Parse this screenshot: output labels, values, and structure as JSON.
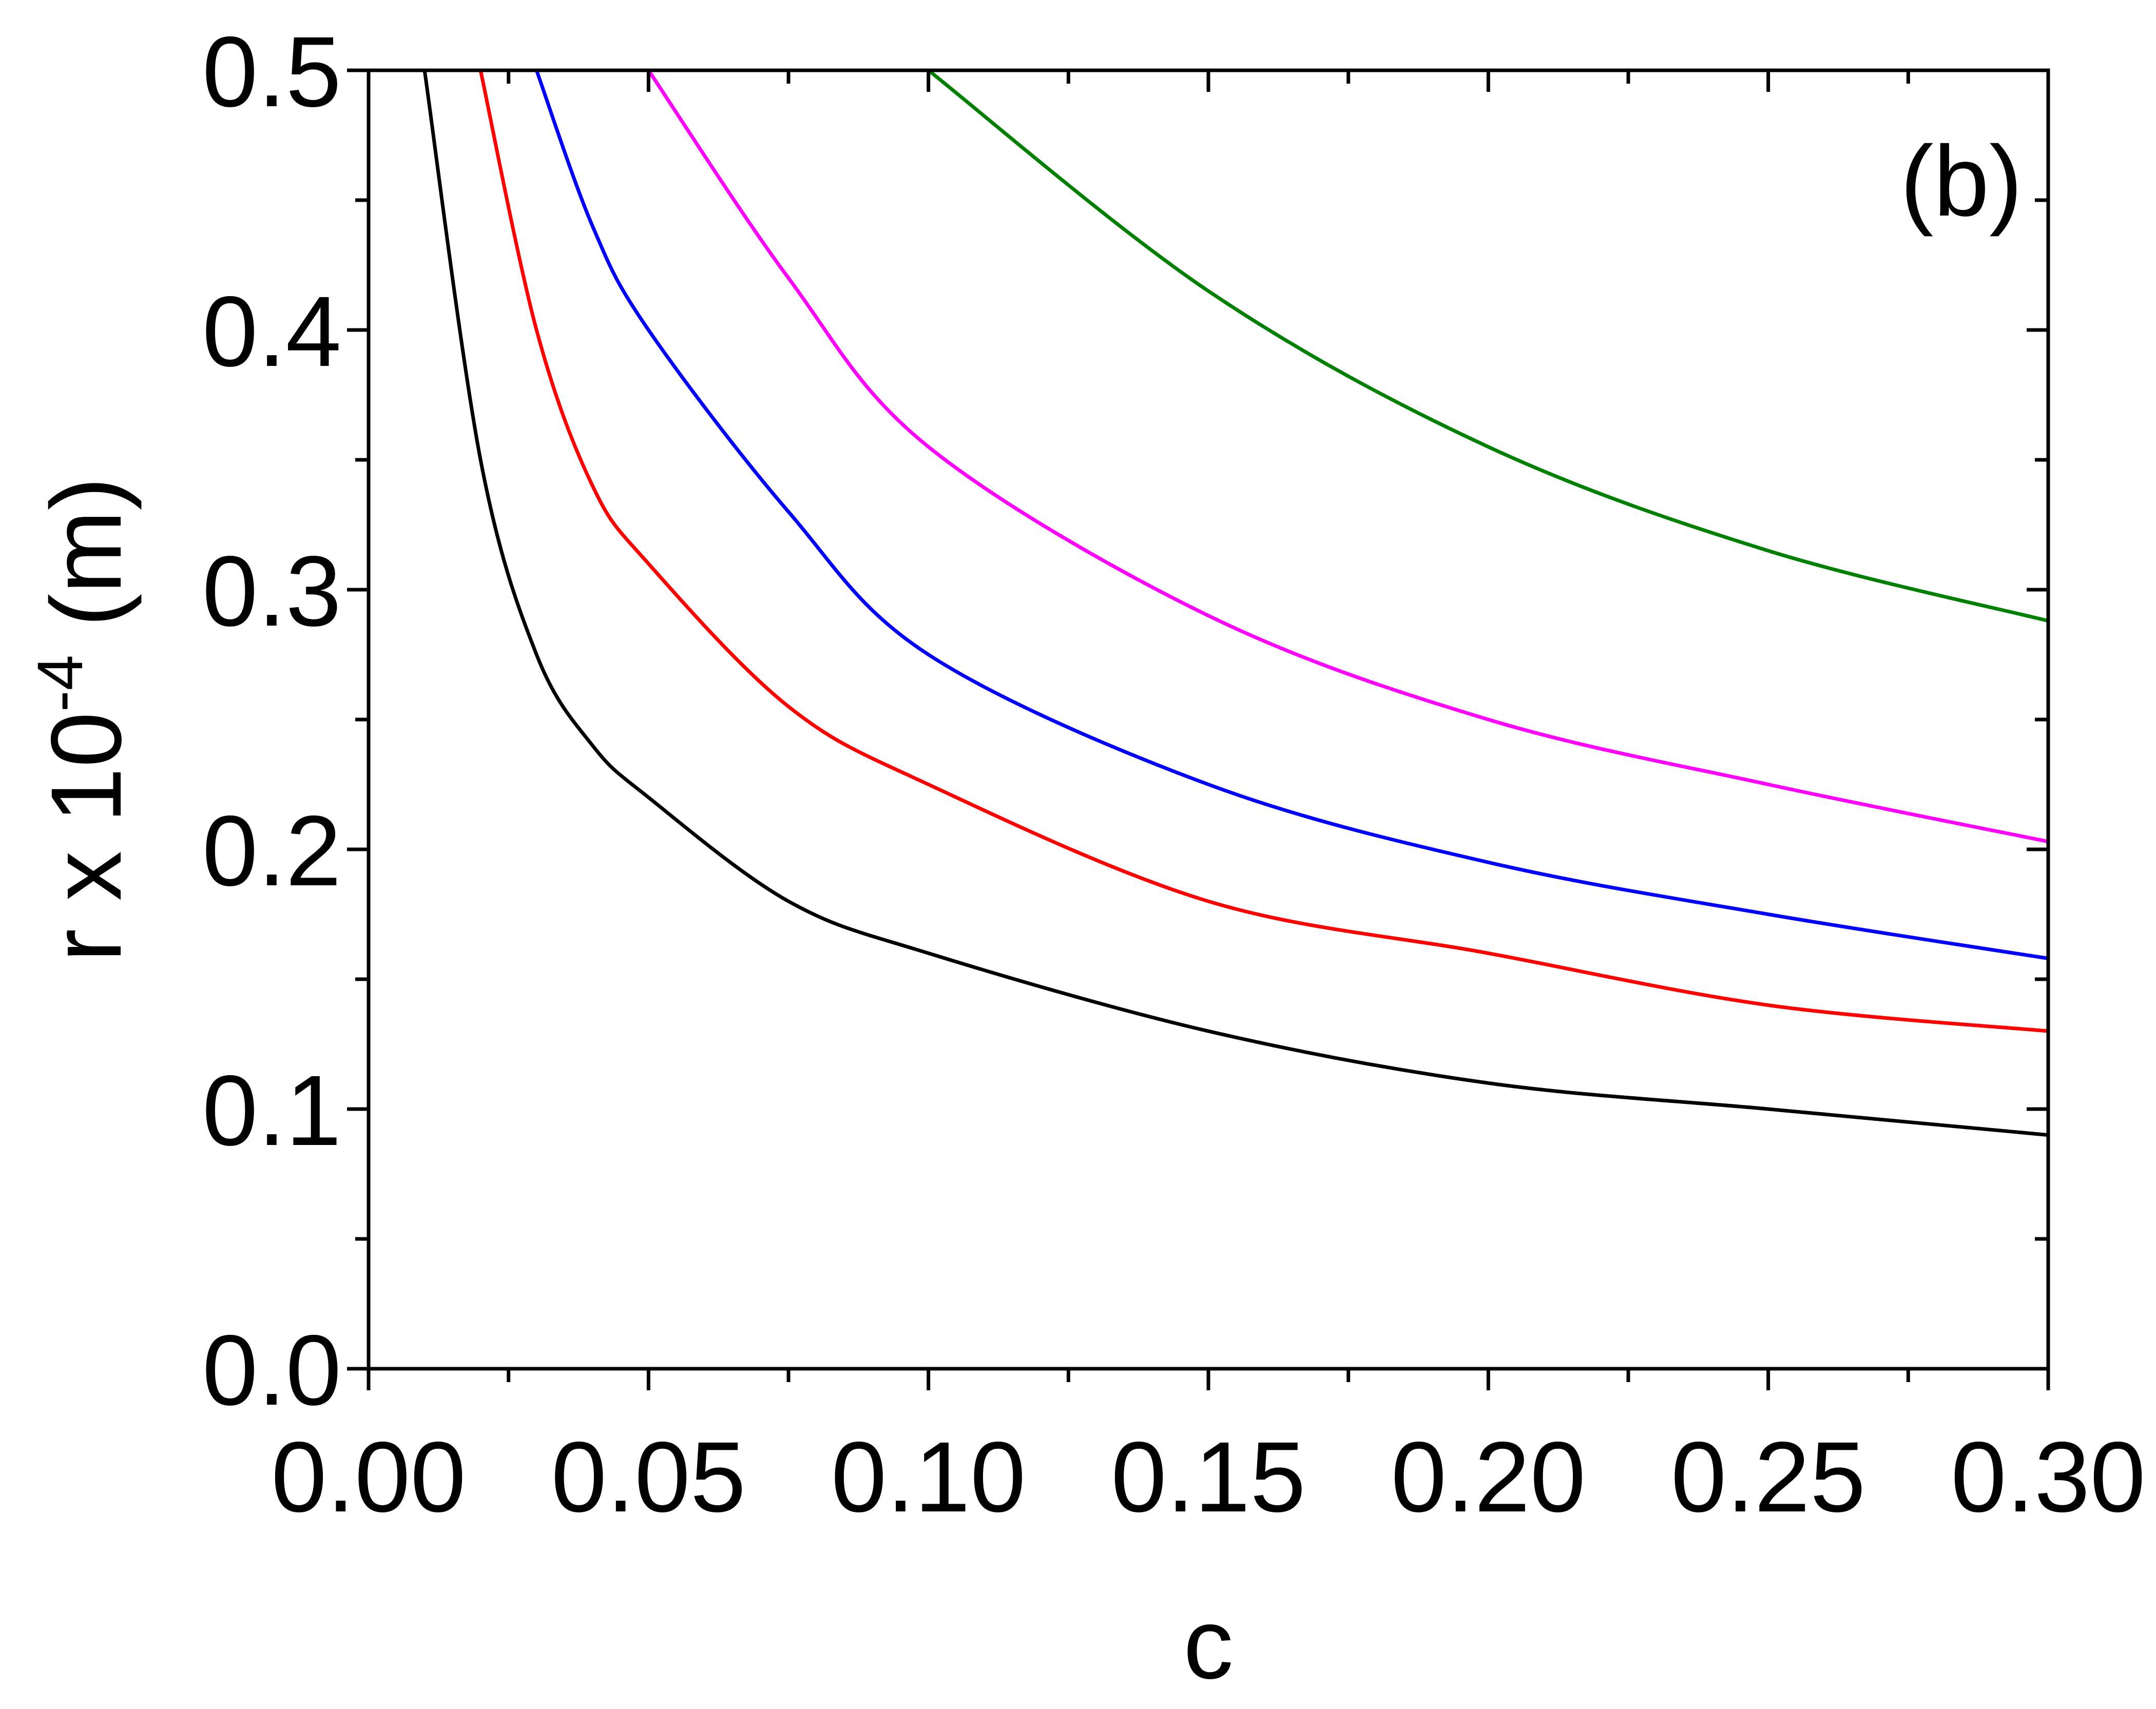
{
  "chart_data": {
    "type": "line",
    "panel_label": "(b)",
    "xlabel": "c",
    "ylabel_main": "r x 10",
    "ylabel_exp": "-4",
    "ylabel_unit": " (m)",
    "xlim": [
      0.0,
      0.3
    ],
    "ylim": [
      0.0,
      0.5
    ],
    "x_ticks": [
      0.0,
      0.05,
      0.1,
      0.15,
      0.2,
      0.25,
      0.3
    ],
    "x_tick_labels": [
      "0.00",
      "0.05",
      "0.10",
      "0.15",
      "0.20",
      "0.25",
      "0.30"
    ],
    "y_ticks": [
      0.0,
      0.1,
      0.2,
      0.3,
      0.4,
      0.5
    ],
    "y_tick_labels": [
      "0.0",
      "0.1",
      "0.2",
      "0.3",
      "0.4",
      "0.5"
    ],
    "grid": false,
    "legend": "none",
    "series": [
      {
        "color": "#000000",
        "points": [
          [
            0.01,
            0.5
          ],
          [
            0.02,
            0.35
          ],
          [
            0.03,
            0.275
          ],
          [
            0.04,
            0.24
          ],
          [
            0.05,
            0.22
          ],
          [
            0.075,
            0.18
          ],
          [
            0.1,
            0.16
          ],
          [
            0.15,
            0.13
          ],
          [
            0.2,
            0.11
          ],
          [
            0.25,
            0.1
          ],
          [
            0.3,
            0.09
          ]
        ]
      },
      {
        "color": "#ff0000",
        "points": [
          [
            0.02,
            0.5
          ],
          [
            0.03,
            0.4
          ],
          [
            0.04,
            0.34
          ],
          [
            0.05,
            0.31
          ],
          [
            0.075,
            0.255
          ],
          [
            0.1,
            0.225
          ],
          [
            0.15,
            0.18
          ],
          [
            0.2,
            0.16
          ],
          [
            0.25,
            0.14
          ],
          [
            0.3,
            0.13
          ]
        ]
      },
      {
        "color": "#0000ff",
        "points": [
          [
            0.03,
            0.5
          ],
          [
            0.04,
            0.44
          ],
          [
            0.05,
            0.4
          ],
          [
            0.075,
            0.33
          ],
          [
            0.1,
            0.275
          ],
          [
            0.15,
            0.225
          ],
          [
            0.2,
            0.195
          ],
          [
            0.25,
            0.175
          ],
          [
            0.3,
            0.158
          ]
        ]
      },
      {
        "color": "#ff00ff",
        "points": [
          [
            0.05,
            0.5
          ],
          [
            0.075,
            0.42
          ],
          [
            0.1,
            0.355
          ],
          [
            0.15,
            0.29
          ],
          [
            0.2,
            0.25
          ],
          [
            0.25,
            0.225
          ],
          [
            0.3,
            0.203
          ]
        ]
      },
      {
        "color": "#008000",
        "points": [
          [
            0.1,
            0.5
          ],
          [
            0.15,
            0.415
          ],
          [
            0.2,
            0.355
          ],
          [
            0.25,
            0.315
          ],
          [
            0.3,
            0.288
          ]
        ]
      }
    ]
  }
}
